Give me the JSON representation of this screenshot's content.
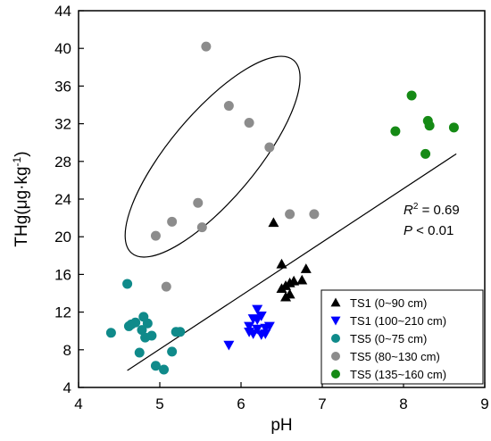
{
  "chart_data": {
    "type": "scatter",
    "xlabel": "pH",
    "ylabel": "THg(μg·kg",
    "ylabel_sup": "-1",
    "ylabel_close": ")",
    "xlim": [
      4,
      9
    ],
    "ylim": [
      4,
      44
    ],
    "xticks": [
      "4",
      "5",
      "6",
      "7",
      "8",
      "9"
    ],
    "yticks": [
      "4",
      "8",
      "12",
      "16",
      "20",
      "24",
      "28",
      "32",
      "36",
      "40",
      "44"
    ],
    "grid": false,
    "legend_position": "bottom-right",
    "annotations": {
      "r2_label": "R",
      "r2_sup": "2",
      "r2_value": " = 0.69",
      "p_label": "P",
      "p_value": "  < 0.01"
    },
    "regression_line": {
      "x": [
        4.6,
        8.65
      ],
      "y": [
        5.8,
        28.8
      ]
    },
    "highlight_ellipse": {
      "cx": 5.65,
      "cy": 28.5,
      "rx": 1.55,
      "ry": 7.4,
      "angle_deg": 50
    },
    "series": [
      {
        "name": "TS1 (0~90 cm)",
        "marker": "triangle-up",
        "color": "#000000",
        "points": [
          [
            6.4,
            21.5
          ],
          [
            6.5,
            17.1
          ],
          [
            6.5,
            14.5
          ],
          [
            6.55,
            14.8
          ],
          [
            6.55,
            13.6
          ],
          [
            6.6,
            15.1
          ],
          [
            6.6,
            13.9
          ],
          [
            6.65,
            15.3
          ],
          [
            6.75,
            15.4
          ],
          [
            6.8,
            16.6
          ]
        ]
      },
      {
        "name": "TS1 (100~210 cm)",
        "marker": "triangle-down",
        "color": "#0000ff",
        "points": [
          [
            5.85,
            8.5
          ],
          [
            6.1,
            10.5
          ],
          [
            6.1,
            9.9
          ],
          [
            6.15,
            11.3
          ],
          [
            6.15,
            9.7
          ],
          [
            6.2,
            12.3
          ],
          [
            6.2,
            11.2
          ],
          [
            6.2,
            10.2
          ],
          [
            6.25,
            11.6
          ],
          [
            6.25,
            9.6
          ],
          [
            6.3,
            10.3
          ],
          [
            6.3,
            9.7
          ],
          [
            6.35,
            10.5
          ]
        ]
      },
      {
        "name": "TS5 (0~75 cm)",
        "marker": "circle",
        "color": "#0f8a8a",
        "points": [
          [
            4.4,
            9.8
          ],
          [
            4.6,
            15.0
          ],
          [
            4.62,
            10.5
          ],
          [
            4.65,
            10.7
          ],
          [
            4.7,
            10.9
          ],
          [
            4.75,
            7.7
          ],
          [
            4.78,
            10.1
          ],
          [
            4.8,
            11.5
          ],
          [
            4.82,
            9.3
          ],
          [
            4.85,
            10.8
          ],
          [
            4.9,
            9.5
          ],
          [
            4.95,
            6.3
          ],
          [
            5.05,
            5.9
          ],
          [
            5.15,
            7.8
          ],
          [
            5.2,
            9.9
          ],
          [
            5.25,
            9.9
          ]
        ]
      },
      {
        "name": "TS5 (80~130 cm)",
        "marker": "circle",
        "color": "#8c8c8c",
        "points": [
          [
            4.95,
            20.1
          ],
          [
            5.08,
            14.7
          ],
          [
            5.15,
            21.6
          ],
          [
            5.47,
            23.6
          ],
          [
            5.52,
            21.0
          ],
          [
            5.57,
            40.2
          ],
          [
            5.85,
            33.9
          ],
          [
            6.1,
            32.1
          ],
          [
            6.35,
            29.5
          ],
          [
            6.6,
            22.4
          ],
          [
            6.9,
            22.4
          ]
        ]
      },
      {
        "name": "TS5 (135~160 cm)",
        "marker": "circle",
        "color": "#158a15",
        "points": [
          [
            7.9,
            31.2
          ],
          [
            8.1,
            35.0
          ],
          [
            8.27,
            28.8
          ],
          [
            8.3,
            32.3
          ],
          [
            8.32,
            31.8
          ],
          [
            8.62,
            31.6
          ]
        ]
      }
    ]
  }
}
